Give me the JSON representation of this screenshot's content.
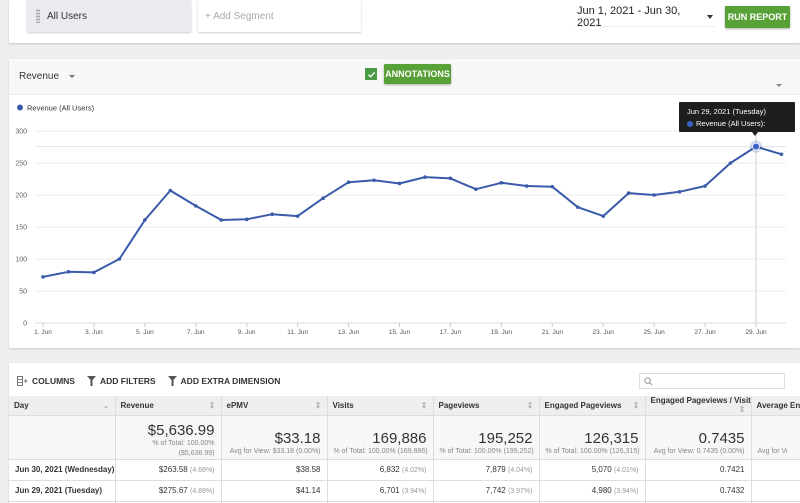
{
  "segments": {
    "active": "All Users",
    "add_placeholder": "+ Add Segment"
  },
  "date_range": "Jun 1, 2021 - Jun 30, 2021",
  "run_report_label": "RUN REPORT",
  "chart_header": {
    "metric": "Revenue",
    "annotations_label": "ANNOTATIONS",
    "annotations_checked": true
  },
  "tooltip": {
    "title": "Jun 29, 2021 (Tuesday)",
    "series_line": "Revenue (All Users): 275.67"
  },
  "colors": {
    "accent_green": "#58a137",
    "series_blue": "#3a5ba9",
    "tooltip_bg": "#1e1e1e"
  },
  "chart_data": {
    "type": "line",
    "title": "",
    "xlabel": "",
    "ylabel": "",
    "legend": [
      "Revenue (All Users)"
    ],
    "legend_position": "top-left",
    "grid": true,
    "ylim": [
      0,
      300
    ],
    "yticks": [
      0,
      50,
      100,
      150,
      200,
      250,
      300
    ],
    "xtick_labels": [
      "1. Jun",
      "3. Jun",
      "5. Jun",
      "7. Jun",
      "9. Jun",
      "11. Jun",
      "13. Jun",
      "15. Jun",
      "17. Jun",
      "19. Jun",
      "21. Jun",
      "23. Jun",
      "25. Jun",
      "27. Jun",
      "29. Jun"
    ],
    "x": [
      "Jun 1",
      "Jun 2",
      "Jun 3",
      "Jun 4",
      "Jun 5",
      "Jun 6",
      "Jun 7",
      "Jun 8",
      "Jun 9",
      "Jun 10",
      "Jun 11",
      "Jun 12",
      "Jun 13",
      "Jun 14",
      "Jun 15",
      "Jun 16",
      "Jun 17",
      "Jun 18",
      "Jun 19",
      "Jun 20",
      "Jun 21",
      "Jun 22",
      "Jun 23",
      "Jun 24",
      "Jun 25",
      "Jun 26",
      "Jun 27",
      "Jun 28",
      "Jun 29",
      "Jun 30"
    ],
    "series": [
      {
        "name": "Revenue (All Users)",
        "values": [
          72,
          80,
          79,
          100,
          161,
          207,
          183,
          161,
          162,
          170,
          167,
          195,
          220,
          223,
          218,
          228,
          226,
          209,
          219,
          214,
          213,
          181,
          167,
          203,
          200,
          205,
          214,
          250,
          275.67,
          263.58
        ]
      }
    ],
    "highlighted_point": {
      "x": "Jun 29",
      "value": 275.67
    }
  },
  "table": {
    "toolbar": {
      "columns_label": "COLUMNS",
      "filters_label": "ADD FILTERS",
      "dimension_label": "ADD EXTRA DIMENSION",
      "search_placeholder": ""
    },
    "headers": [
      "Day",
      "Revenue",
      "ePMV",
      "Visits",
      "Pageviews",
      "Engaged Pageviews",
      "Engaged Pageviews / Visit",
      "Average Eng"
    ],
    "summary": [
      {
        "big": "",
        "sub1": "",
        "sub2": ""
      },
      {
        "big": "$5,636.99",
        "sub1": "% of Total: 100.00%",
        "sub2": "($5,636.99)"
      },
      {
        "big": "$33.18",
        "sub1": "Avg for View: $33.18 (0.00%)",
        "sub2": ""
      },
      {
        "big": "169,886",
        "sub1": "% of Total: 100.00% (169,886)",
        "sub2": ""
      },
      {
        "big": "195,252",
        "sub1": "% of Total: 100.00% (195,252)",
        "sub2": ""
      },
      {
        "big": "126,315",
        "sub1": "% of Total: 100.00% (126,315)",
        "sub2": ""
      },
      {
        "big": "0.7435",
        "sub1": "Avg for View: 0.7435 (0.00%)",
        "sub2": ""
      },
      {
        "big": "",
        "sub1": "Avg for Vi",
        "sub2": ""
      }
    ],
    "rows": [
      {
        "day": "Jun 30, 2021 (Wednesday)",
        "revenue": "$263.58",
        "revenue_pct": "(4.68%)",
        "epmv": "$38.58",
        "visits": "6,832",
        "visits_pct": "(4.02%)",
        "pageviews": "7,879",
        "pageviews_pct": "(4.04%)",
        "engaged": "5,070",
        "engaged_pct": "(4.01%)",
        "engaged_per_visit": "0.7421",
        "avg_eng": ""
      },
      {
        "day": "Jun 29, 2021 (Tuesday)",
        "revenue": "$275.67",
        "revenue_pct": "(4.89%)",
        "epmv": "$41.14",
        "visits": "6,701",
        "visits_pct": "(3.94%)",
        "pageviews": "7,742",
        "pageviews_pct": "(3.97%)",
        "engaged": "4,980",
        "engaged_pct": "(3.94%)",
        "engaged_per_visit": "0.7432",
        "avg_eng": ""
      }
    ]
  }
}
